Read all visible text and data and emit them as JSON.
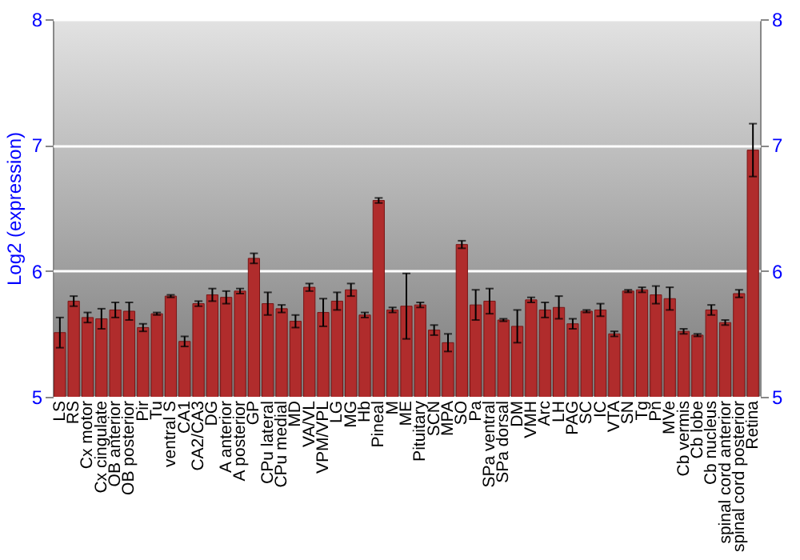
{
  "chart_data": {
    "type": "bar",
    "ylabel": "Log2 (expression)",
    "categories": [
      "LS",
      "RS",
      "Cx motor",
      "Cx cingulate",
      "OB anterior",
      "OB posterior",
      "Pir",
      "Tu",
      "ventral S",
      "CA1",
      "CA2/CA3",
      "DG",
      "A anterior",
      "A posterior",
      "GP",
      "CPu lateral",
      "CPu medial",
      "MD",
      "VA/VL",
      "VPM/VPL",
      "LG",
      "MG",
      "Hb",
      "Pineal",
      "M",
      "ME",
      "Pituitary",
      "SCN",
      "MPA",
      "SO",
      "Pa",
      "SPa ventral",
      "SPa dorsal",
      "DM",
      "VMH",
      "Arc",
      "LH",
      "PAG",
      "SC",
      "IC",
      "VTA",
      "SN",
      "Tg",
      "Pn",
      "MVe",
      "Cb vermis",
      "Cb lobe",
      "Cb nucleus",
      "spinal cord anterior",
      "spinal cord posterior",
      "Retina"
    ],
    "values": [
      5.51,
      5.76,
      5.63,
      5.62,
      5.69,
      5.68,
      5.55,
      5.66,
      5.8,
      5.44,
      5.74,
      5.81,
      5.79,
      5.84,
      6.1,
      5.74,
      5.7,
      5.6,
      5.87,
      5.67,
      5.76,
      5.85,
      5.65,
      6.56,
      5.69,
      5.72,
      5.73,
      5.53,
      5.43,
      6.21,
      5.73,
      5.76,
      5.61,
      5.56,
      5.77,
      5.69,
      5.71,
      5.58,
      5.68,
      5.69,
      5.5,
      5.84,
      5.85,
      5.81,
      5.78,
      5.52,
      5.49,
      5.69,
      5.59,
      5.82,
      6.96
    ],
    "errors": [
      0.12,
      0.04,
      0.04,
      0.08,
      0.06,
      0.07,
      0.03,
      0.01,
      0.01,
      0.04,
      0.02,
      0.05,
      0.05,
      0.02,
      0.04,
      0.09,
      0.03,
      0.05,
      0.03,
      0.11,
      0.07,
      0.05,
      0.02,
      0.02,
      0.02,
      0.26,
      0.02,
      0.04,
      0.07,
      0.03,
      0.12,
      0.1,
      0.01,
      0.13,
      0.02,
      0.06,
      0.09,
      0.04,
      0.01,
      0.05,
      0.02,
      0.01,
      0.02,
      0.07,
      0.09,
      0.02,
      0.01,
      0.04,
      0.02,
      0.03,
      0.21
    ],
    "color": "#b02c2c",
    "ylim": [
      5,
      8
    ],
    "yticks": [
      5,
      6,
      7,
      8
    ],
    "y2lim": [
      5,
      8
    ],
    "y2ticks": [
      5,
      6,
      7,
      8
    ],
    "grid": "y"
  }
}
